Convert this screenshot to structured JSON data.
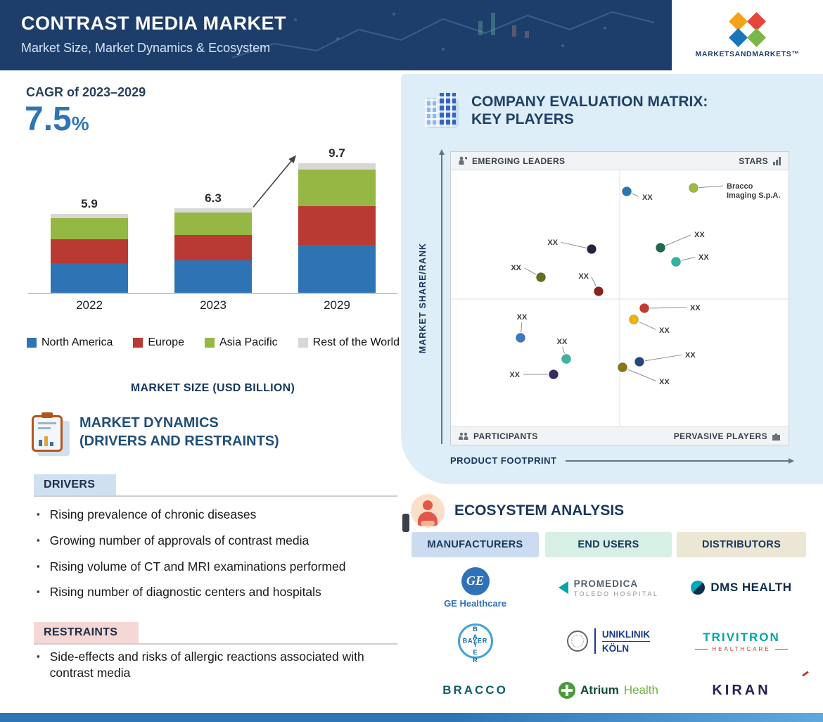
{
  "header": {
    "title": "CONTRAST MEDIA MARKET",
    "subtitle": "Market Size, Market Dynamics & Ecosystem",
    "brand": "MARKETSANDMARKETS™"
  },
  "left": {
    "cagr_label": "CAGR of 2023–2029",
    "cagr_value": "7.5",
    "cagr_unit": "%",
    "dynamics": {
      "title_line1": "MARKET DYNAMICS",
      "title_line2": "(DRIVERS AND RESTRAINTS)",
      "drivers_label": "DRIVERS",
      "drivers": [
        "Rising prevalence of chronic diseases",
        "Growing number of approvals of contrast media",
        "Rising volume of CT and MRI examinations performed",
        "Rising number of diagnostic centers and hospitals"
      ],
      "restraints_label": "RESTRAINTS",
      "restraints": [
        "Side-effects and risks of allergic reactions associated with contrast media"
      ]
    }
  },
  "chart_data": [
    {
      "type": "bar",
      "stacked": true,
      "title": "MARKET SIZE (USD BILLION)",
      "categories": [
        "2022",
        "2023",
        "2029"
      ],
      "totals": [
        5.9,
        6.3,
        9.7
      ],
      "series": [
        {
          "name": "North America",
          "color": "#2e74b5",
          "values": [
            2.2,
            2.4,
            3.6
          ]
        },
        {
          "name": "Europe",
          "color": "#b93a32",
          "values": [
            1.8,
            1.9,
            2.9
          ]
        },
        {
          "name": "Asia Pacific",
          "color": "#95b743",
          "values": [
            1.6,
            1.7,
            2.7
          ]
        },
        {
          "name": "Rest of the World",
          "color": "#d7d7d7",
          "values": [
            0.3,
            0.3,
            0.5
          ]
        }
      ],
      "ylabel": "MARKET SIZE (USD BILLION)",
      "cagr_annotation": "CAGR of 2023–2029: 7.5%",
      "legend_position": "bottom"
    },
    {
      "type": "scatter",
      "title": "COMPANY EVALUATION MATRIX: KEY PLAYERS",
      "x_axis": "PRODUCT FOOTPRINT",
      "y_axis": "MARKET SHARE/RANK",
      "quadrants": [
        "EMERGING LEADERS",
        "STARS",
        "PARTICIPANTS",
        "PERVASIVE PLAYERS"
      ],
      "points": [
        {
          "x": 250,
          "y": 30,
          "color": "#2e75b6",
          "label": "XX",
          "lx": 272,
          "ly": 42,
          "anchor": "start"
        },
        {
          "x": 345,
          "y": 25,
          "color": "#9fba3d",
          "label": "Bracco\nImaging S.p.A.",
          "lx": 392,
          "ly": 26,
          "anchor": "start"
        },
        {
          "x": 298,
          "y": 110,
          "color": "#1d6b4c",
          "label": "XX",
          "lx": 346,
          "ly": 95,
          "anchor": "start"
        },
        {
          "x": 320,
          "y": 130,
          "color": "#2cb5a5",
          "label": "XX",
          "lx": 352,
          "ly": 127,
          "anchor": "start"
        },
        {
          "x": 200,
          "y": 112,
          "color": "#262340",
          "label": "XX",
          "lx": 152,
          "ly": 106,
          "anchor": "end"
        },
        {
          "x": 128,
          "y": 152,
          "color": "#5f701f",
          "label": "XX",
          "lx": 100,
          "ly": 142,
          "anchor": "end"
        },
        {
          "x": 210,
          "y": 172,
          "color": "#8e1f1a",
          "label": "XX",
          "lx": 196,
          "ly": 154,
          "anchor": "end"
        },
        {
          "x": 275,
          "y": 196,
          "color": "#c8392e",
          "label": "XX",
          "lx": 340,
          "ly": 199,
          "anchor": "start"
        },
        {
          "x": 260,
          "y": 212,
          "color": "#eab60a",
          "label": "XX",
          "lx": 296,
          "ly": 231,
          "anchor": "start"
        },
        {
          "x": 99,
          "y": 238,
          "color": "#3b79c2",
          "label": "XX",
          "lx": 101,
          "ly": 212,
          "anchor": "middle"
        },
        {
          "x": 164,
          "y": 268,
          "color": "#3ab5a3",
          "label": "XX",
          "lx": 158,
          "ly": 247,
          "anchor": "middle"
        },
        {
          "x": 146,
          "y": 290,
          "color": "#3a2a5e",
          "label": "XX",
          "lx": 98,
          "ly": 294,
          "anchor": "end"
        },
        {
          "x": 244,
          "y": 280,
          "color": "#8a7612",
          "label": "XX",
          "lx": 296,
          "ly": 304,
          "anchor": "start"
        },
        {
          "x": 268,
          "y": 272,
          "color": "#24477e",
          "label": "XX",
          "lx": 333,
          "ly": 266,
          "anchor": "start"
        }
      ]
    }
  ],
  "matrix": {
    "title_line1": "COMPANY EVALUATION MATRIX:",
    "title_line2": "KEY PLAYERS"
  },
  "ecosystem": {
    "title": "ECOSYSTEM ANALYSIS",
    "columns": [
      {
        "label": "MANUFACTURERS",
        "color": "#ccdcf0"
      },
      {
        "label": "END USERS",
        "color": "#d7efe4"
      },
      {
        "label": "DISTRIBUTORS",
        "color": "#ece6d4"
      }
    ],
    "logos": {
      "ge_monogram": "GE",
      "ge": "GE Healthcare",
      "bayer": "BAYER",
      "bracco": "BRACCO",
      "promedica_line1": "PROMEDICA",
      "promedica_line2": "TOLEDO HOSPITAL",
      "uniklinik_line1": "UNIKLINIK",
      "uniklinik_line2": "KÖLN",
      "atrium_word1": "Atrium",
      "atrium_word2": "Health",
      "dms": "DMS HEALTH",
      "trivitron_line1": "TRIVITRON",
      "trivitron_line2": "HEALTHCARE",
      "kiran": "KIRAN"
    }
  }
}
